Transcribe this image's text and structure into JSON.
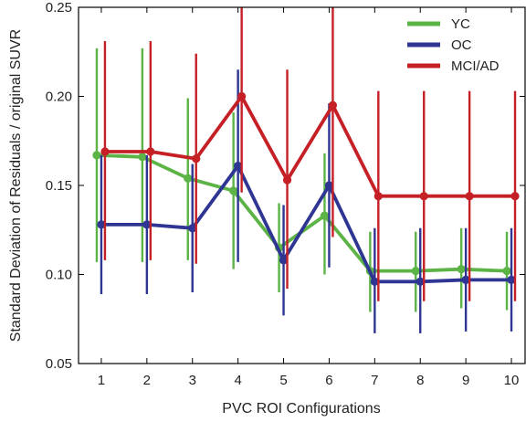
{
  "chart_data": {
    "type": "line",
    "xlabel": "PVC ROI Configurations",
    "ylabel": "Standard Deviation of Residuals / original SUVR",
    "x": [
      1,
      2,
      3,
      4,
      5,
      6,
      7,
      8,
      9,
      10
    ],
    "x_tick_labels": [
      "1",
      "2",
      "3",
      "4",
      "5",
      "6",
      "7",
      "8",
      "9",
      "10"
    ],
    "xlim": [
      0.5,
      10.3
    ],
    "ylim": [
      0.05,
      0.25
    ],
    "y_ticks": [
      0.05,
      0.1,
      0.15,
      0.2,
      0.25
    ],
    "y_tick_labels": [
      "0.05",
      "0.10",
      "0.15",
      "0.20",
      "0.25"
    ],
    "legend_position": "top-right",
    "error_bars": true,
    "series": [
      {
        "name": "YC",
        "color": "#5cb346",
        "offset": -0.1,
        "values": [
          0.167,
          0.166,
          0.154,
          0.147,
          0.115,
          0.133,
          0.102,
          0.102,
          0.103,
          0.102
        ],
        "err_low": [
          0.107,
          0.107,
          0.108,
          0.103,
          0.09,
          0.1,
          0.079,
          0.079,
          0.081,
          0.08
        ],
        "err_high": [
          0.227,
          0.227,
          0.199,
          0.191,
          0.14,
          0.168,
          0.124,
          0.124,
          0.126,
          0.124
        ]
      },
      {
        "name": "OC",
        "color": "#2f3592",
        "offset": 0.0,
        "values": [
          0.128,
          0.128,
          0.126,
          0.161,
          0.108,
          0.15,
          0.096,
          0.096,
          0.097,
          0.097
        ],
        "err_low": [
          0.089,
          0.089,
          0.09,
          0.107,
          0.077,
          0.104,
          0.067,
          0.067,
          0.068,
          0.068
        ],
        "err_high": [
          0.167,
          0.167,
          0.162,
          0.215,
          0.139,
          0.196,
          0.126,
          0.126,
          0.126,
          0.126
        ]
      },
      {
        "name": "MCI/AD",
        "color": "#c42026",
        "offset": 0.08,
        "values": [
          0.169,
          0.169,
          0.165,
          0.2,
          0.153,
          0.195,
          0.144,
          0.144,
          0.144,
          0.144
        ],
        "err_low": [
          0.108,
          0.108,
          0.106,
          0.146,
          0.092,
          0.121,
          0.085,
          0.085,
          0.085,
          0.085
        ],
        "err_high": [
          0.231,
          0.231,
          0.224,
          0.253,
          0.215,
          0.253,
          0.203,
          0.203,
          0.203,
          0.203
        ]
      }
    ]
  }
}
